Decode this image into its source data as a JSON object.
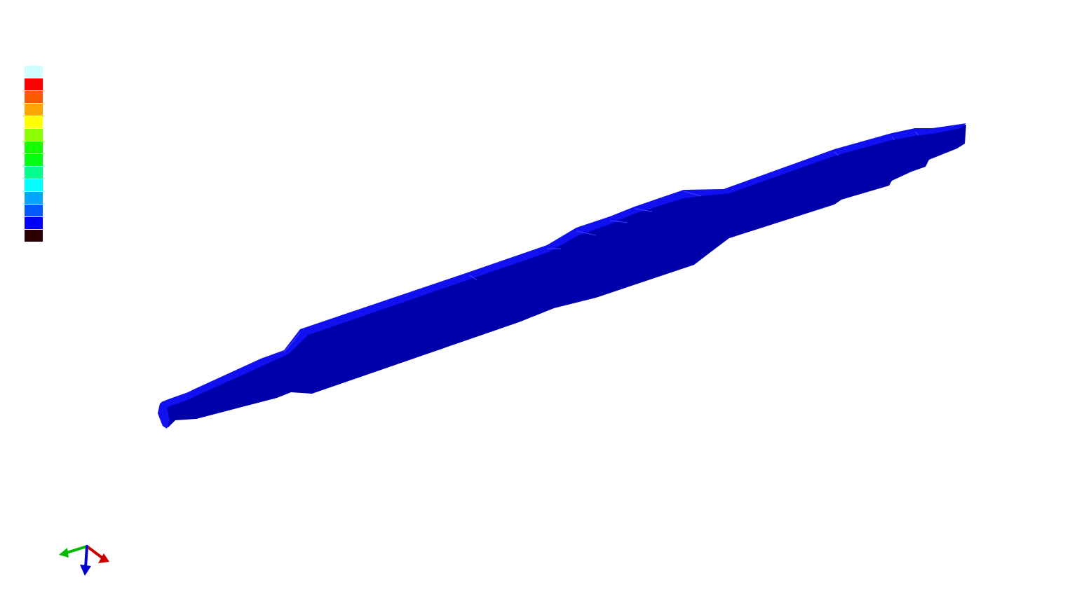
{
  "viewport": {
    "background": "#ffffff"
  },
  "legend": {
    "colors": [
      "#ccffff",
      "#ff0000",
      "#ff5a00",
      "#ffa500",
      "#ffff00",
      "#8cff00",
      "#14ff00",
      "#00ff14",
      "#00ff8c",
      "#00ffff",
      "#00a5ff",
      "#005aff",
      "#0000ff",
      "#280000"
    ]
  },
  "model": {
    "name": "shaft",
    "body_color": "#0000aa",
    "top_color": "#1010f0",
    "edge_color": "#4040ff"
  },
  "triad": {
    "x_axis_color": "#cc0000",
    "y_axis_color": "#00bb00",
    "z_axis_color": "#0000cc"
  }
}
